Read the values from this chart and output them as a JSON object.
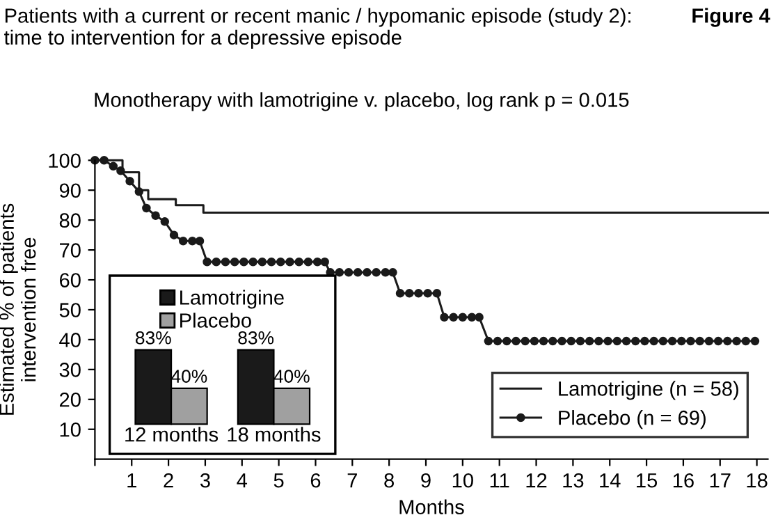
{
  "chart_data": [
    {
      "type": "line",
      "title": "Patients with a current or recent manic / hypomanic episode (study 2):\ntime to intervention for a depressive episode",
      "subtitle": "Monotherapy with lamotrigine v. placebo, log rank p = 0.015",
      "xlabel": "Months",
      "ylabel": "Estimated % of patients\nintervention free",
      "annotations": [
        "Figure 4"
      ],
      "series": [
        {
          "name": "Lamotrigine (n = 58)",
          "type": "step",
          "color": "#1a1a1a",
          "marker": "none",
          "x": [
            0,
            0.75,
            1.2,
            1.45,
            2.2,
            2.95,
            18.3
          ],
          "values": [
            100,
            96,
            90,
            87,
            85,
            82.5,
            82.5
          ]
        },
        {
          "name": "Placebo (n = 69)",
          "type": "line",
          "color": "#1a1a1a",
          "marker": "circle",
          "x": [
            0,
            0.25,
            0.5,
            0.7,
            0.95,
            1.2,
            1.4,
            1.65,
            1.9,
            2.15,
            2.4,
            2.65,
            2.85,
            3.05,
            3.3,
            3.55,
            3.8,
            4.05,
            4.3,
            4.55,
            4.8,
            5.05,
            5.3,
            5.55,
            5.8,
            6.05,
            6.25,
            6.4,
            6.65,
            6.9,
            7.15,
            7.4,
            7.65,
            7.9,
            8.1,
            8.3,
            8.55,
            8.8,
            9.05,
            9.3,
            9.5,
            9.75,
            10.0,
            10.25,
            10.45,
            10.7,
            10.95,
            11.2,
            11.45,
            11.7,
            11.95,
            12.2,
            12.45,
            12.7,
            12.95,
            13.2,
            13.45,
            13.7,
            13.95,
            14.2,
            14.45,
            14.7,
            14.95,
            15.2,
            15.45,
            15.7,
            15.95,
            16.2,
            16.45,
            16.7,
            16.95,
            17.2,
            17.45,
            17.7,
            17.95
          ],
          "values": [
            100,
            100,
            98,
            96.5,
            93,
            89.5,
            84,
            81.5,
            79.5,
            75,
            73,
            73,
            73,
            66,
            66,
            66,
            66,
            66,
            66,
            66,
            66,
            66,
            66,
            66,
            66,
            66,
            66,
            62.5,
            62.5,
            62.5,
            62.5,
            62.5,
            62.5,
            62.5,
            62.5,
            55.5,
            55.5,
            55.5,
            55.5,
            55.5,
            47.5,
            47.5,
            47.5,
            47.5,
            47.5,
            39.5,
            39.5,
            39.5,
            39.5,
            39.5,
            39.5,
            39.5,
            39.5,
            39.5,
            39.5,
            39.5,
            39.5,
            39.5,
            39.5,
            39.5,
            39.5,
            39.5,
            39.5,
            39.5,
            39.5,
            39.5,
            39.5,
            39.5,
            39.5,
            39.5,
            39.5,
            39.5,
            39.5,
            39.5,
            39.5
          ]
        }
      ],
      "xlim": [
        0,
        18.3
      ],
      "ylim": [
        0,
        100
      ],
      "xticks": [
        {
          "value": 0,
          "label": null
        },
        1,
        2,
        3,
        4,
        5,
        6,
        7,
        8,
        9,
        10,
        11,
        12,
        13,
        14,
        15,
        16,
        17,
        18
      ],
      "yticks": [
        10,
        20,
        30,
        40,
        50,
        60,
        70,
        80,
        90,
        100
      ],
      "legend": "bottom right"
    },
    {
      "type": "bar",
      "categories": [
        "12 months",
        "18 months"
      ],
      "series": [
        {
          "name": "Lamotrigine",
          "color": "#1a1a1a",
          "values": [
            83,
            83
          ],
          "value_labels": [
            "83%",
            "83%"
          ]
        },
        {
          "name": "Placebo",
          "color": "#a0a0a0",
          "values": [
            40,
            40
          ],
          "value_labels": [
            "40%",
            "40%"
          ]
        }
      ],
      "legend": "top"
    }
  ]
}
